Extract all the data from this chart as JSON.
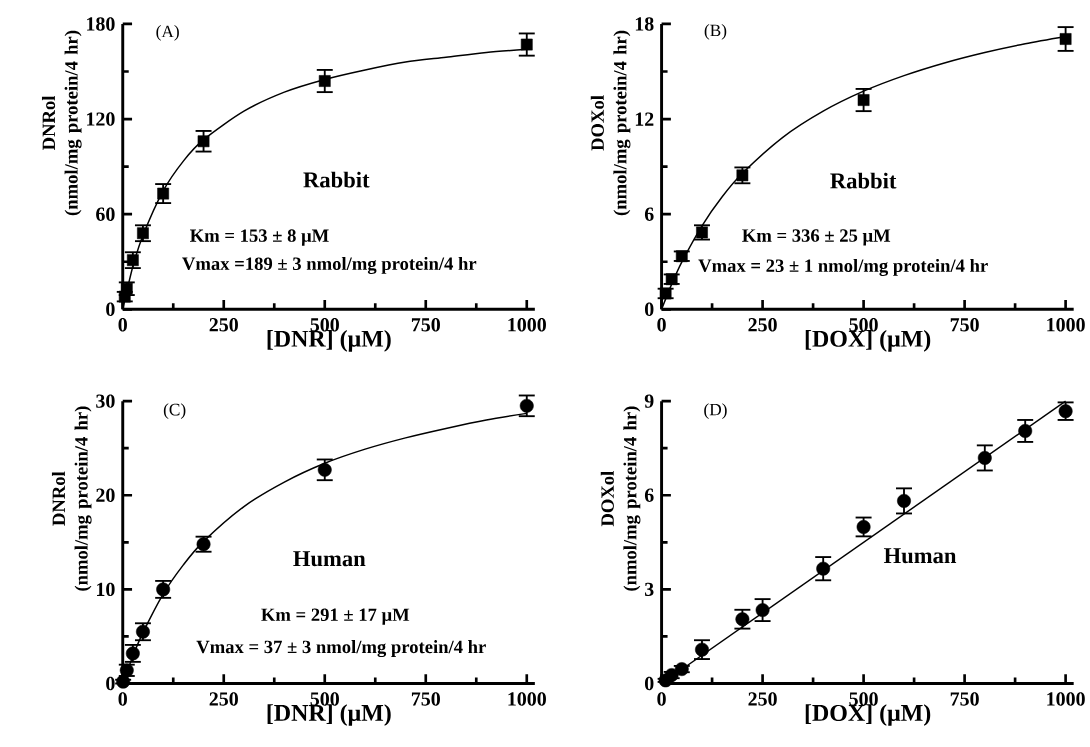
{
  "chart_data": [
    {
      "type": "scatter",
      "xlabel": "[DNR] (μM)",
      "ylabel": "DNRol (nmol/mg protein/4 hr)",
      "xlim": [
        0,
        1020
      ],
      "ylim": [
        0,
        180
      ],
      "xticks": [
        0,
        {
          "value": 125,
          "label": null
        },
        250,
        {
          "value": 375,
          "label": null
        },
        500,
        {
          "value": 625,
          "label": null
        },
        750,
        {
          "value": 875,
          "label": null
        },
        1000
      ],
      "yticks": [
        0,
        {
          "value": 30,
          "label": null
        },
        60,
        {
          "value": 90,
          "label": null
        },
        120,
        {
          "value": 150,
          "label": null
        },
        180
      ],
      "annotations": [
        "(A)",
        "Rabbit",
        "Km = 153  ± 8  μM",
        "Vmax =189  ± 3  nmol/mg protein/4 hr"
      ],
      "series": [
        {
          "type": "scatter",
          "marker": "square",
          "color": "#000000",
          "x": [
            5,
            10,
            25,
            50,
            100,
            200,
            500,
            1000
          ],
          "values": [
            8,
            13,
            31,
            48,
            73,
            106,
            144,
            167
          ],
          "errors": [
            3,
            4,
            5,
            5,
            6,
            6.5,
            7,
            7
          ]
        },
        {
          "type": "line",
          "marker": "none",
          "color": "#000000",
          "x": [
            0,
            25,
            50,
            100,
            150,
            200,
            300,
            400,
            500,
            600,
            700,
            800,
            900,
            1000
          ],
          "values": [
            0,
            27,
            46.6,
            74.7,
            93.5,
            107,
            125,
            137,
            145,
            151,
            156,
            159,
            162,
            164
          ]
        }
      ]
    },
    {
      "type": "scatter",
      "xlabel": "[DOX] (μM)",
      "ylabel": "DOXol (nmol/mg protein/4 hr)",
      "xlim": [
        0,
        1020
      ],
      "ylim": [
        0,
        18
      ],
      "xticks": [
        0,
        {
          "value": 125,
          "label": null
        },
        250,
        {
          "value": 375,
          "label": null
        },
        500,
        {
          "value": 625,
          "label": null
        },
        750,
        {
          "value": 875,
          "label": null
        },
        1000
      ],
      "yticks": [
        0,
        {
          "value": 3,
          "label": null
        },
        6,
        {
          "value": 9,
          "label": null
        },
        12,
        {
          "value": 15,
          "label": null
        },
        18
      ],
      "annotations": [
        "(B)",
        "Rabbit",
        "Km =  336 ± 25  μM",
        "Vmax = 23  ± 1  nmol/mg protein/4 hr"
      ],
      "series": [
        {
          "type": "scatter",
          "marker": "square",
          "color": "#000000",
          "x": [
            10,
            25,
            50,
            100,
            200,
            500,
            1000
          ],
          "values": [
            1.0,
            1.9,
            3.35,
            4.85,
            8.45,
            13.2,
            17.05
          ],
          "errors": [
            0.3,
            0.3,
            0.3,
            0.45,
            0.5,
            0.7,
            0.75
          ]
        },
        {
          "type": "line",
          "marker": "none",
          "color": "#000000",
          "x": [
            0,
            25,
            50,
            100,
            150,
            200,
            300,
            400,
            500,
            600,
            700,
            800,
            900,
            1000
          ],
          "values": [
            0,
            1.59,
            2.98,
            5.27,
            7.1,
            8.58,
            10.85,
            12.5,
            13.76,
            14.74,
            15.54,
            16.2,
            16.75,
            17.21
          ]
        }
      ]
    },
    {
      "type": "scatter",
      "xlabel": "[DNR] (μM)",
      "ylabel": "DNRol (nmol/mg protein/4 hr)",
      "xlim": [
        0,
        1020
      ],
      "ylim": [
        0,
        30
      ],
      "xticks": [
        0,
        {
          "value": 125,
          "label": null
        },
        250,
        {
          "value": 375,
          "label": null
        },
        500,
        {
          "value": 625,
          "label": null
        },
        750,
        {
          "value": 875,
          "label": null
        },
        1000
      ],
      "yticks": [
        0,
        {
          "value": 5,
          "label": null
        },
        10,
        {
          "value": 15,
          "label": null
        },
        20,
        {
          "value": 25,
          "label": null
        },
        30
      ],
      "annotations": [
        "(C)",
        "Human",
        "Km =  291 ± 17  μM",
        "Vmax = 37  ± 3 nmol/mg protein/4 hr"
      ],
      "series": [
        {
          "type": "scatter",
          "marker": "circle",
          "color": "#000000",
          "x": [
            1,
            10,
            25,
            50,
            100,
            200,
            500,
            1000
          ],
          "values": [
            0.2,
            1.4,
            3.2,
            5.5,
            10,
            14.8,
            22.7,
            29.5
          ],
          "errors": [
            0.2,
            0.6,
            0.9,
            0.9,
            0.9,
            0.8,
            1.1,
            1.1
          ]
        },
        {
          "type": "line",
          "marker": "none",
          "color": "#000000",
          "x": [
            0,
            25,
            50,
            100,
            150,
            200,
            300,
            400,
            500,
            600,
            700,
            800,
            900,
            1000
          ],
          "values": [
            0,
            2.9,
            5.4,
            9.5,
            12.6,
            15.1,
            18.8,
            21.4,
            23.4,
            24.9,
            26.1,
            27.1,
            28.0,
            28.7
          ]
        }
      ]
    },
    {
      "type": "scatter",
      "xlabel": "[DOX] (μM)",
      "ylabel": "DOXol (nmol/mg protein/4 hr)",
      "xlim": [
        0,
        1020
      ],
      "ylim": [
        0,
        9
      ],
      "xticks": [
        0,
        {
          "value": 125,
          "label": null
        },
        250,
        {
          "value": 375,
          "label": null
        },
        500,
        {
          "value": 625,
          "label": null
        },
        750,
        {
          "value": 875,
          "label": null
        },
        1000
      ],
      "yticks": [
        0,
        {
          "value": 1.5,
          "label": null
        },
        3,
        {
          "value": 4.5,
          "label": null
        },
        6,
        {
          "value": 7.5,
          "label": null
        },
        9
      ],
      "annotations": [
        "(D)",
        "Human"
      ],
      "series": [
        {
          "type": "scatter",
          "marker": "circle",
          "color": "#000000",
          "x": [
            10,
            25,
            50,
            100,
            200,
            250,
            400,
            500,
            600,
            800,
            900,
            1000
          ],
          "values": [
            0.1,
            0.27,
            0.46,
            1.08,
            2.05,
            2.34,
            3.66,
            4.99,
            5.82,
            7.19,
            8.05,
            8.68
          ],
          "errors": [
            0.05,
            0.1,
            0.1,
            0.3,
            0.3,
            0.35,
            0.37,
            0.3,
            0.4,
            0.4,
            0.35,
            0.28
          ]
        },
        {
          "type": "line",
          "marker": "none",
          "color": "#000000",
          "x": [
            0,
            1000
          ],
          "values": [
            0,
            9.0
          ]
        }
      ]
    }
  ]
}
